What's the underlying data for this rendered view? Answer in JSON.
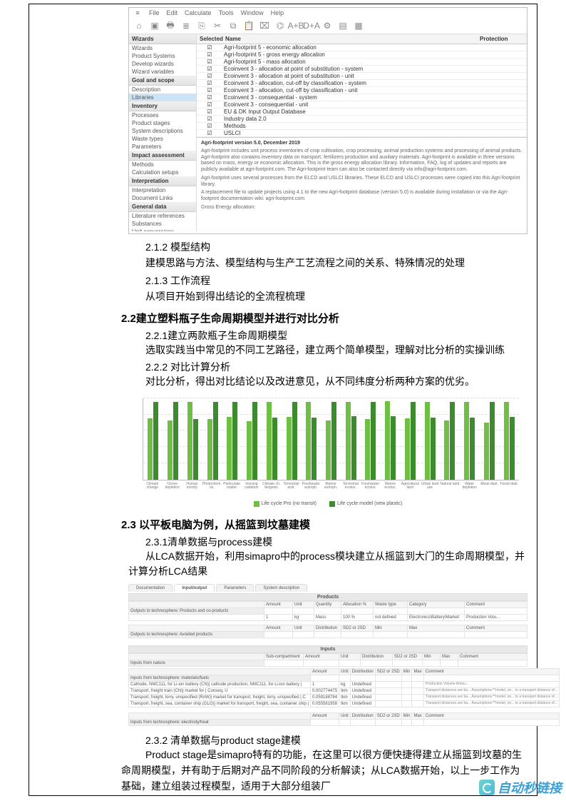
{
  "simapro1": {
    "menu": [
      "File",
      "Edit",
      "Calculate",
      "Tools",
      "Window",
      "Help"
    ],
    "toolbar_icons": [
      "home-icon",
      "open-icon",
      "save-icon",
      "calc-icon",
      "print-icon",
      "cut-icon",
      "copy-icon",
      "paste-icon",
      "tree-icon",
      "network-icon",
      "ab-icon",
      "da-icon",
      "gear-icon",
      "chart-icon",
      "grid-icon"
    ],
    "toolbar_glyphs": [
      "⌂",
      "▣",
      "🖶",
      "≣",
      "⎘",
      "✂",
      "⧉",
      "📋",
      "⌧",
      "⌬",
      "A+B",
      "D+A",
      "⚙",
      "▤",
      "▦"
    ],
    "sidebar": [
      {
        "head": "Wizards"
      },
      {
        "item": "Wizards"
      },
      {
        "item": "Product Systems"
      },
      {
        "item": "Develop wizards"
      },
      {
        "item": "Wizard variables"
      },
      {
        "head": "Goal and scope"
      },
      {
        "item": "Description"
      },
      {
        "item": "Libraries",
        "sel": true
      },
      {
        "head": "Inventory"
      },
      {
        "item": "Processes"
      },
      {
        "item": "Product stages"
      },
      {
        "item": "System descriptions"
      },
      {
        "item": "Waste types"
      },
      {
        "item": "Parameters"
      },
      {
        "head": "Impact assessment"
      },
      {
        "item": "Methods"
      },
      {
        "item": "Calculation setups"
      },
      {
        "head": "Interpretation"
      },
      {
        "item": "Interpretation"
      },
      {
        "item": "Document Links"
      },
      {
        "head": "General data"
      },
      {
        "item": "Literature references"
      },
      {
        "item": "Substances"
      },
      {
        "item": "Unit conversions"
      },
      {
        "item": "Units"
      }
    ],
    "table": {
      "headers": {
        "selected": "Selected",
        "name": "Name",
        "protection": "Protection"
      },
      "rows": [
        "Agri-footprint 5 - economic allocation",
        "Agri-footprint 5 - gross energy allocation",
        "Agri-footprint 5 - mass allocation",
        "Ecoinvent 3 - allocation at point of substitution - system",
        "Ecoinvent 3 - allocation at point of substitution - unit",
        "Ecoinvent 3 - allocation, cut-off by classification - system",
        "Ecoinvent 3 - allocation, cut-off by classification - unit",
        "Ecoinvent 3 - consequential - system",
        "Ecoinvent 3 - consequential - unit",
        "EU & DK Input Output Database",
        "Industry data 2.0",
        "Methods",
        "USLCI"
      ]
    },
    "desc": {
      "title": "Agri-footprint version 5.0, December 2019",
      "p1": "Agri-footprint includes unit process inventories of crop cultivation, crop processing, animal production systems and processing of animal products. Agri-footprint also contains inventory data on transport, fertilizers production and auxiliary materials. Agri-footprint is available in three versions based on mass, energy or economic allocation. This is the gross energy allocation library. Information, FAQ, log of updates and reports are publicly available at agri-footprint.com. The Agri-footprint team can also be contacted directly via info@agri-footprint.com.",
      "p2": "Agri-footprint uses several processes from the ELCD and USLCI libraries. These ELCD and USLCI processes were copied into this Agri-footprint library.",
      "p3": "A replacement file to update projects using 4.1 to the new Agri-footprint database (version 5.0) is available during installation or via the Agri-footprint documentation wiki: agri-footprint.com",
      "footer": "Gross Energy allocation:"
    }
  },
  "sections": {
    "s212_h": "2.1.2 模型结构",
    "s212_p": "建模思路与方法、模型结构与生产工艺流程之间的关系、特殊情况的处理",
    "s213_h": "2.1.3 工作流程",
    "s213_p": "从项目开始到得出结论的全流程梳理",
    "s22_h": "2.2建立塑料瓶子生命周期模型并进行对比分析",
    "s221_h": "2.2.1建立两款瓶子生命周期模型",
    "s221_p": "选取实践当中常见的不同工艺路径，建立两个简单模型，理解对比分析的实操训练",
    "s222_h": "2.2.2 对比计算分析",
    "s222_p": "对比分析，得出对比结论以及改进意见，从不同纬度分析两种方案的优劣。",
    "s23_h": "2.3 以平板电脑为例，从摇篮到坟墓建模",
    "s231_h": "2.3.1清单数据与process建模",
    "s231_p": "从LCA数据开始，利用simapro中的process模块建立从摇篮到大门的生命周期模型，并计算分析LCA结果",
    "s232_h": "2.3.2 清单数据与product stage建模",
    "s232_p": "Product stage是simapro特有的功能，在这里可以很方便快捷得建立从摇篮到坟墓的生命周期模型，并有助于后期对产品不同阶段的分析解读；从LCA数据开始，以上一步工作为基础，建立组装过程模型，适用于大部分组装厂"
  },
  "chart": {
    "type": "bar",
    "colors": {
      "a": "#6fbf44",
      "b": "#3d8b2f",
      "grid": "#e0e0e0"
    },
    "ylim": [
      0,
      100
    ],
    "gridlines": [
      20,
      40,
      60,
      80,
      100
    ],
    "categories": [
      "Climate change",
      "Ozone depletion",
      "Human toxicity",
      "Photochem. ox.",
      "Particulate matter",
      "Ionising radiation",
      "Climate ch. biogenic",
      "Terrestrial acid.",
      "Freshwater eutroph.",
      "Marine eutroph.",
      "Terrestrial ecotox.",
      "Freshwater ecotox.",
      "Marine ecotox.",
      "Agricultural land",
      "Urban land use",
      "Natural land",
      "Water depletion",
      "Metal depl.",
      "Fossil depl."
    ],
    "series_a": [
      75,
      73,
      95,
      74,
      77,
      72,
      95,
      77,
      95,
      73,
      95,
      74,
      96,
      75,
      95,
      73,
      95,
      70,
      95
    ],
    "series_b": [
      95,
      95,
      74,
      95,
      95,
      95,
      76,
      95,
      76,
      95,
      78,
      95,
      78,
      95,
      76,
      95,
      76,
      95,
      77
    ],
    "legend": {
      "a": "Life cycle Pro (no transit)",
      "b": "Life cycle model (new plastic)"
    }
  },
  "simapro2": {
    "tabs": [
      "Documentation",
      "Input/output",
      "Parameters",
      "System description"
    ],
    "active_tab": 1,
    "section_products": "Products",
    "cols_products": [
      "",
      "Amount",
      "Unit",
      "Quantity",
      "Allocation %",
      "Waste type",
      "Category",
      "Comment"
    ],
    "row_products_label": "Outputs to technosphere: Products and co-products",
    "row_products": [
      "1",
      "kg",
      "Mass",
      "100 %",
      "not defined",
      "Electronics\\Battery\\Market",
      "Production Volu..."
    ],
    "row_avoided_label": "Outputs to technosphere: Avoided products",
    "cols_avoided": [
      "",
      "Amount",
      "Unit",
      "Distribution",
      "SD2 or 2SD",
      "Min",
      "Max",
      "Comment"
    ],
    "section_inputs": "Inputs",
    "row_nature_label": "Inputs from nature",
    "cols_nature": [
      "",
      "Sub-compartment",
      "Amount",
      "Unit",
      "Distribution",
      "SD2 or 2SD",
      "Min",
      "Max",
      "Comment"
    ],
    "row_techno_label": "Inputs from technosphere: materials/fuels",
    "cols_techno": [
      "",
      "Amount",
      "Unit",
      "Distribution",
      "SD2 or 2SD",
      "Min",
      "Max",
      "Comment"
    ],
    "techno_rows": [
      {
        "name": "Cathode, NMC111, for Li-ion battery (CN)| cathode production, NMC111, for Li-ion battery |",
        "amount": "1",
        "unit": "kg",
        "dist": "Undefined",
        "comment": "Production Volume Amou..."
      },
      {
        "name": "Transport, freight train (CN)| market for | Conseq, U",
        "amount": "0.002774475",
        "unit": "tkm",
        "dist": "Undefined",
        "comment": "Transport distances are ba... Assumptions:**model, on... to a transport distance of..."
      },
      {
        "name": "Transport, freight, lorry, unspecified (RoW)| market for transport, freight, lorry, unspecified | C",
        "amount": "0.059188784",
        "unit": "tkm",
        "dist": "Undefined",
        "comment": "Transport distances are ba... Assumptions:**model, on... to a transport distance of..."
      },
      {
        "name": "Transport, freight, sea, container ship (GLO)| market for transport, freight, sea, container ship |",
        "amount": "0.055581958",
        "unit": "tkm",
        "dist": "Undefined",
        "comment": "Transport distances are ba... Assumptions:**model, on... to a transport distance of..."
      }
    ],
    "row_elec_label": "Inputs from technosphere: electricity/heat",
    "cols_elec": [
      "",
      "Amount",
      "Unit",
      "Distribution",
      "SD2 or 2SD",
      "Min",
      "Max",
      "Comment"
    ]
  },
  "watermark": "自动秒链接"
}
